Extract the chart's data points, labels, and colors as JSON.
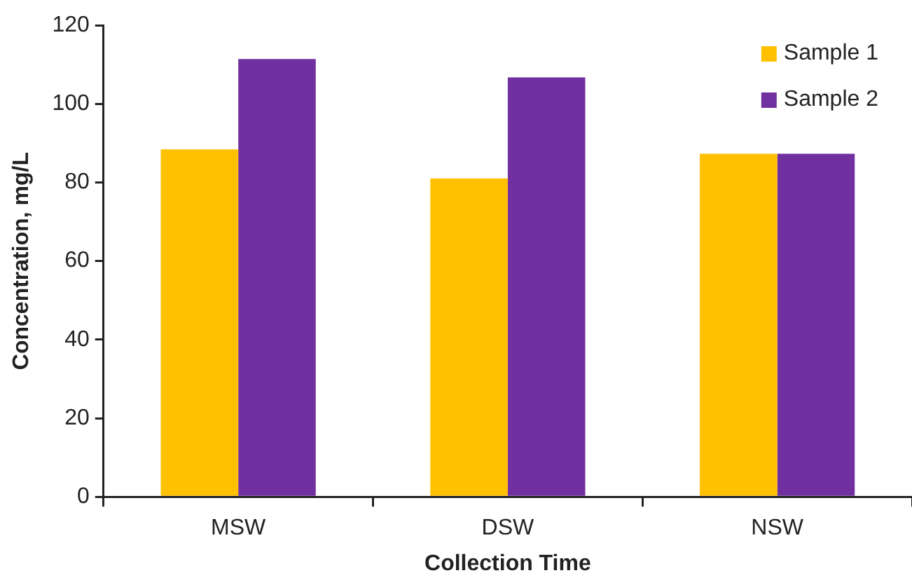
{
  "chart_data": {
    "type": "bar",
    "xlabel": "Collection Time",
    "ylabel": "Concentration, mg/L",
    "categories": [
      "MSW",
      "DSW",
      "NSW"
    ],
    "series": [
      {
        "name": "Sample 1",
        "color": "#ffc000",
        "values": [
          88.4,
          81,
          87.3
        ]
      },
      {
        "name": "Sample 2",
        "color": "#7030a0",
        "values": [
          111.4,
          106.7,
          87.3
        ]
      }
    ],
    "ylim": [
      0,
      120
    ],
    "yticks": [
      0,
      20,
      40,
      60,
      80,
      100,
      120
    ],
    "grid": false,
    "legend": "top right"
  }
}
